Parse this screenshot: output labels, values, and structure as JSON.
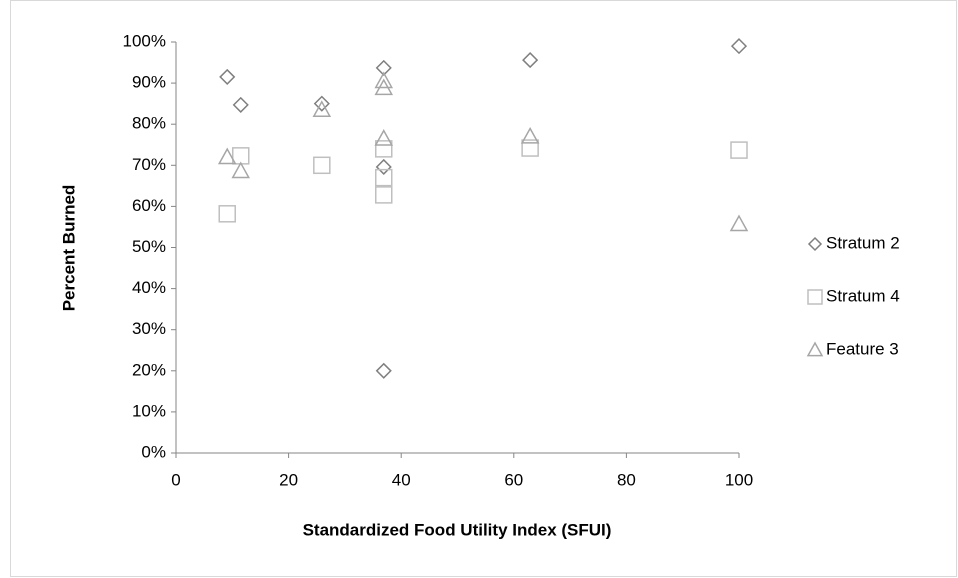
{
  "chart_data": {
    "type": "scatter",
    "xlabel": "Standardized Food Utility Index (SFUI)",
    "ylabel": "Percent Burned",
    "xlim": [
      0,
      100
    ],
    "xticks": [
      0,
      20,
      40,
      60,
      80,
      100
    ],
    "ylim": [
      0,
      100
    ],
    "yticks": [
      {
        "value": 0,
        "label": "0%"
      },
      {
        "value": 10,
        "label": "10%"
      },
      {
        "value": 20,
        "label": "20%"
      },
      {
        "value": 30,
        "label": "30%"
      },
      {
        "value": 40,
        "label": "40%"
      },
      {
        "value": 50,
        "label": "50%"
      },
      {
        "value": 60,
        "label": "60%"
      },
      {
        "value": 70,
        "label": "70%"
      },
      {
        "value": 80,
        "label": "80%"
      },
      {
        "value": 90,
        "label": "90%"
      },
      {
        "value": 100,
        "label": "100%"
      }
    ],
    "legend": "right",
    "series": [
      {
        "name": "Stratum 2",
        "marker": "diamond",
        "color": "#7f7f7f",
        "x": [
          9.1,
          11.5,
          25.9,
          36.9,
          36.9,
          36.9,
          62.9,
          100
        ],
        "values": [
          91.5,
          84.7,
          85,
          93.7,
          69.6,
          20,
          95.6,
          99
        ]
      },
      {
        "name": "Stratum 4",
        "marker": "square",
        "color": "#bfbfbf",
        "x": [
          9.1,
          11.5,
          25.9,
          36.9,
          36.9,
          36.9,
          62.9,
          100
        ],
        "values": [
          58.2,
          72.3,
          70,
          74,
          67,
          62.8,
          74.2,
          73.7
        ]
      },
      {
        "name": "Feature 3",
        "marker": "triangle",
        "color": "#a6a6a6",
        "x": [
          9.1,
          11.5,
          25.9,
          36.9,
          36.9,
          36.9,
          62.9,
          100
        ],
        "values": [
          72,
          68.6,
          83.5,
          90.5,
          88.8,
          76.5,
          77,
          55.7
        ]
      }
    ]
  }
}
